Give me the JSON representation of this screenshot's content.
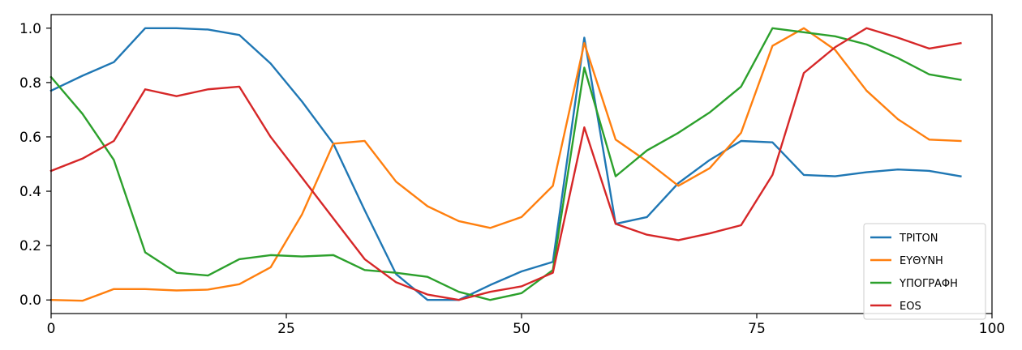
{
  "chart_data": {
    "type": "line",
    "title": "",
    "xlabel": "",
    "ylabel": "",
    "xlim": [
      0,
      100
    ],
    "ylim": [
      -0.05,
      1.05
    ],
    "xticks": [
      0,
      25,
      50,
      75,
      100
    ],
    "yticks": [
      0.0,
      0.2,
      0.4,
      0.6,
      0.8,
      1.0
    ],
    "xtick_labels": [
      "0",
      "25",
      "50",
      "75",
      "100"
    ],
    "ytick_labels": [
      "0.0",
      "0.2",
      "0.4",
      "0.6",
      "0.8",
      "1.0"
    ],
    "grid": false,
    "legend_position": "lower-right",
    "x": [
      0,
      3.33,
      6.67,
      10,
      13.33,
      16.67,
      20,
      23.33,
      26.67,
      30,
      33.33,
      36.67,
      40,
      43.33,
      46.67,
      50,
      53.33,
      56.67,
      60,
      63.33,
      66.67,
      70,
      73.33,
      76.67,
      80,
      83.33,
      86.67,
      90,
      93.33,
      96.67
    ],
    "series": [
      {
        "name": "ΤΡΙΤΟΝ",
        "color": "#1f77b4",
        "values": [
          0.77,
          0.825,
          0.875,
          1.0,
          1.0,
          0.995,
          0.975,
          0.87,
          0.73,
          0.575,
          0.33,
          0.095,
          0.0,
          0.0,
          0.055,
          0.105,
          0.14,
          0.965,
          0.28,
          0.305,
          0.43,
          0.515,
          0.585,
          0.58,
          0.46,
          0.455,
          0.47,
          0.48,
          0.475,
          0.455
        ]
      },
      {
        "name": "ΕΥΘΥΝΗ",
        "color": "#ff7f0e",
        "values": [
          0.0,
          -0.003,
          0.04,
          0.04,
          0.035,
          0.038,
          0.058,
          0.12,
          0.315,
          0.575,
          0.585,
          0.435,
          0.345,
          0.29,
          0.265,
          0.305,
          0.42,
          0.945,
          0.59,
          0.51,
          0.42,
          0.485,
          0.615,
          0.935,
          1.0,
          0.92,
          0.77,
          0.665,
          0.59,
          0.585
        ]
      },
      {
        "name": "ΥΠΟΓΡΑΦΗ",
        "color": "#2ca02c",
        "values": [
          0.82,
          0.685,
          0.515,
          0.175,
          0.1,
          0.09,
          0.15,
          0.165,
          0.16,
          0.165,
          0.11,
          0.1,
          0.085,
          0.03,
          0.0,
          0.025,
          0.11,
          0.855,
          0.455,
          0.55,
          0.615,
          0.69,
          0.785,
          1.0,
          0.985,
          0.97,
          0.94,
          0.89,
          0.83,
          0.81
        ]
      },
      {
        "name": "EOS",
        "color": "#d62728",
        "values": [
          0.475,
          0.52,
          0.585,
          0.775,
          0.75,
          0.775,
          0.785,
          0.6,
          0.45,
          0.3,
          0.15,
          0.065,
          0.02,
          0.0,
          0.03,
          0.05,
          0.1,
          0.635,
          0.28,
          0.24,
          0.22,
          0.245,
          0.275,
          0.46,
          0.835,
          0.93,
          1.0,
          0.965,
          0.925,
          0.945
        ]
      }
    ]
  }
}
